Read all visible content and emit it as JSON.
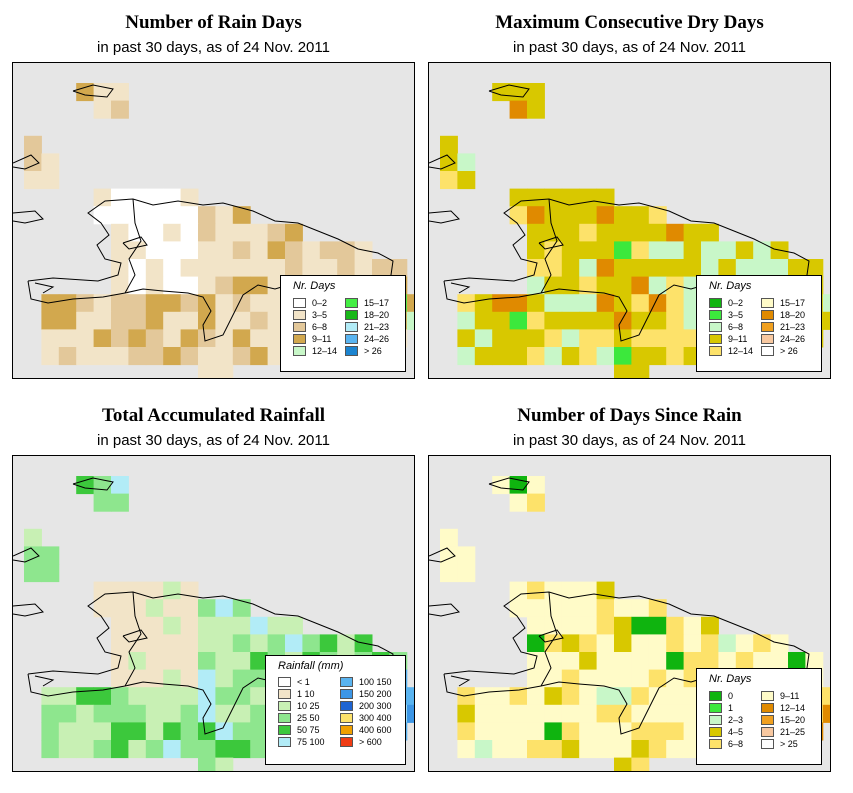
{
  "panels": [
    {
      "title": "Number of Rain Days",
      "subtitle": "in past 30 days, as of  24 Nov. 2011",
      "legend_title": "Nr. Days",
      "legend": [
        {
          "label": "0–2",
          "color": "#ffffff"
        },
        {
          "label": "3–5",
          "color": "#f2e4c8"
        },
        {
          "label": "6–8",
          "color": "#e3c89a"
        },
        {
          "label": "9–11",
          "color": "#d2a84e"
        },
        {
          "label": "12–14",
          "color": "#c8f7c8"
        },
        {
          "label": "15–17",
          "color": "#44ee44"
        },
        {
          "label": "18–20",
          "color": "#19b819"
        },
        {
          "label": "21–23",
          "color": "#b2ecf7"
        },
        {
          "label": "24–26",
          "color": "#5ab4f0"
        },
        {
          "label": "> 26",
          "color": "#1c84d0"
        }
      ]
    },
    {
      "title": "Maximum Consecutive Dry Days",
      "subtitle": "in past 30 days, as of  24 Nov. 2011",
      "legend_title": "Nr. Days",
      "legend": [
        {
          "label": "0–2",
          "color": "#0fb40f"
        },
        {
          "label": "3–5",
          "color": "#3ce83c"
        },
        {
          "label": "6–8",
          "color": "#c8f7c8"
        },
        {
          "label": "9–11",
          "color": "#d8c800"
        },
        {
          "label": "12–14",
          "color": "#fde26a"
        },
        {
          "label": "15–17",
          "color": "#fffbc8"
        },
        {
          "label": "18–20",
          "color": "#e08a00"
        },
        {
          "label": "21–23",
          "color": "#f0a020"
        },
        {
          "label": "24–26",
          "color": "#f8c8a0"
        },
        {
          "label": "> 26",
          "color": "#ffffff"
        }
      ]
    },
    {
      "title": "Total Accumulated Rainfall",
      "subtitle": "in past 30 days, as of  24 Nov. 2011",
      "legend_title": "Rainfall (mm)",
      "legend": [
        {
          "label": "< 1",
          "color": "#ffffff"
        },
        {
          "label": "1   10",
          "color": "#f2e4c8"
        },
        {
          "label": "10   25",
          "color": "#c8f0b4"
        },
        {
          "label": "25   50",
          "color": "#8ee68e"
        },
        {
          "label": "50   75",
          "color": "#3cc83c"
        },
        {
          "label": "75  100",
          "color": "#b2ecf7"
        },
        {
          "label": "100  150",
          "color": "#5ab4f0"
        },
        {
          "label": "150  200",
          "color": "#3c96e6"
        },
        {
          "label": "200  300",
          "color": "#1e64d2"
        },
        {
          "label": "300  400",
          "color": "#fde26a"
        },
        {
          "label": "400  600",
          "color": "#f0a000"
        },
        {
          "label": "> 600",
          "color": "#f03c14"
        }
      ]
    },
    {
      "title": "Number of Days Since Rain",
      "subtitle": "in past 30 days, as of  24 Nov. 2011",
      "legend_title": "Nr. Days",
      "legend": [
        {
          "label": "0",
          "color": "#0fb40f"
        },
        {
          "label": "1",
          "color": "#3ce83c"
        },
        {
          "label": "2–3",
          "color": "#c8f7c8"
        },
        {
          "label": "4–5",
          "color": "#d8c800"
        },
        {
          "label": "6–8",
          "color": "#fde26a"
        },
        {
          "label": "9–11",
          "color": "#fffbc8"
        },
        {
          "label": "12–14",
          "color": "#e08a00"
        },
        {
          "label": "15–20",
          "color": "#f0a020"
        },
        {
          "label": "21–25",
          "color": "#f8c8a0"
        },
        {
          "label": "> 25",
          "color": "#ffffff"
        }
      ]
    }
  ]
}
